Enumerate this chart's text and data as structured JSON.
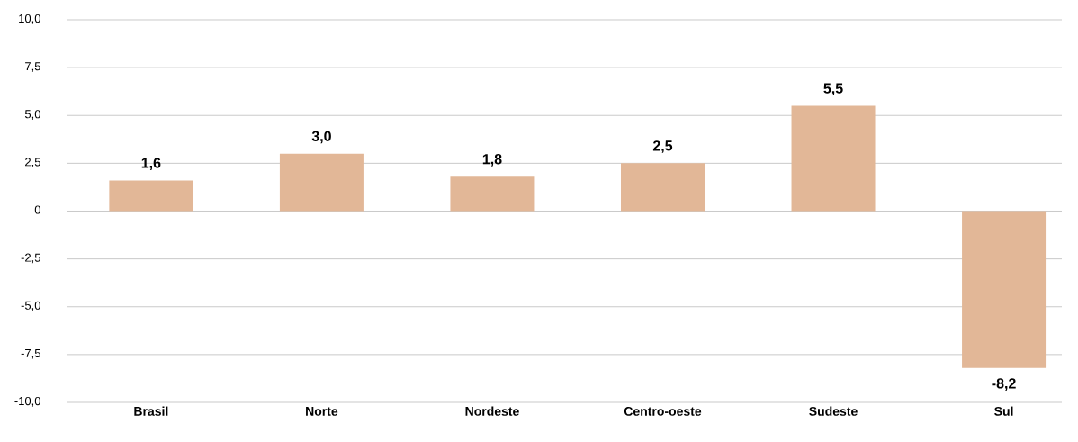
{
  "chart_data": {
    "type": "bar",
    "categories": [
      "Brasil",
      "Norte",
      "Nordeste",
      "Centro-oeste",
      "Sudeste",
      "Sul"
    ],
    "values": [
      1.6,
      3.0,
      1.8,
      2.5,
      5.5,
      -8.2
    ],
    "value_labels": [
      "1,6",
      "3,0",
      "1,8",
      "2,5",
      "5,5",
      "-8,2"
    ],
    "color": "#e2b797",
    "ylim": [
      -10,
      10
    ],
    "yticks": [
      {
        "value": -10,
        "label": "-10,0"
      },
      {
        "value": -7.5,
        "label": "-7,5"
      },
      {
        "value": -5,
        "label": "-5,0"
      },
      {
        "value": -2.5,
        "label": "-2,5"
      },
      0,
      {
        "value": 2.5,
        "label": "2,5"
      },
      {
        "value": 5,
        "label": "5,0"
      },
      {
        "value": 7.5,
        "label": "7,5"
      },
      {
        "value": 10,
        "label": "10,0"
      }
    ],
    "grid": "y"
  }
}
